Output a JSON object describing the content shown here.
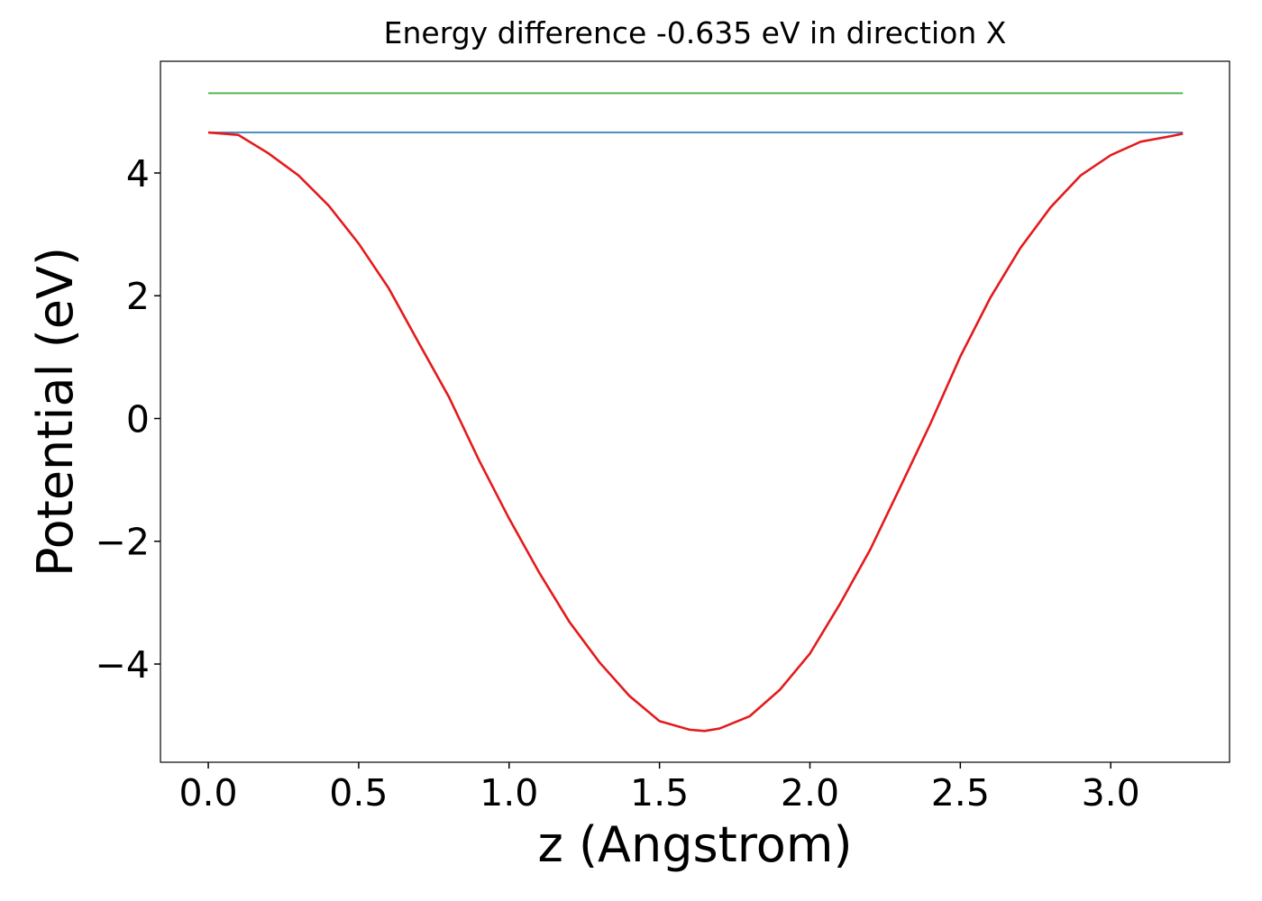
{
  "chart_data": {
    "type": "line",
    "title": "Energy difference -0.635 eV in direction X",
    "x_label": "z (Angstrom)",
    "y_label": "Potential (eV)",
    "xlim": [
      -0.159,
      3.395
    ],
    "ylim": [
      -5.6,
      5.82
    ],
    "xticks": [
      {
        "value": 0,
        "label": "0.0"
      },
      0.5,
      {
        "value": 1,
        "label": "1.0"
      },
      1.5,
      {
        "value": 2,
        "label": "2.0"
      },
      2.5,
      {
        "value": 3,
        "label": "3.0"
      }
    ],
    "yticks": [
      {
        "value": -4,
        "label": "−4"
      },
      {
        "value": -2,
        "label": "−2"
      },
      0,
      2,
      4
    ],
    "series": [
      {
        "color": "#4daf4a",
        "x": [
          0,
          3.24
        ],
        "values": [
          5.3,
          5.3
        ]
      },
      {
        "color": "#377eb8",
        "x": [
          0,
          3.24
        ],
        "values": [
          4.66,
          4.66
        ]
      },
      {
        "color": "#e41a1c",
        "x": [
          0,
          0.1,
          0.2,
          0.3,
          0.4,
          0.5,
          0.6,
          0.7,
          0.8,
          0.9,
          1.0,
          1.1,
          1.2,
          1.3,
          1.4,
          1.5,
          1.6,
          1.65,
          1.7,
          1.8,
          1.9,
          2.0,
          2.1,
          2.2,
          2.3,
          2.4,
          2.5,
          2.6,
          2.7,
          2.8,
          2.9,
          3.0,
          3.1,
          3.2,
          3.24
        ],
        "values": [
          4.66,
          4.62,
          4.32,
          3.96,
          3.47,
          2.85,
          2.12,
          1.23,
          0.35,
          -0.68,
          -1.63,
          -2.51,
          -3.31,
          -3.97,
          -4.52,
          -4.93,
          -5.07,
          -5.09,
          -5.05,
          -4.85,
          -4.42,
          -3.83,
          -3.02,
          -2.14,
          -1.12,
          -0.09,
          1.01,
          1.97,
          2.78,
          3.44,
          3.96,
          4.29,
          4.51,
          4.6,
          4.64
        ]
      }
    ]
  }
}
